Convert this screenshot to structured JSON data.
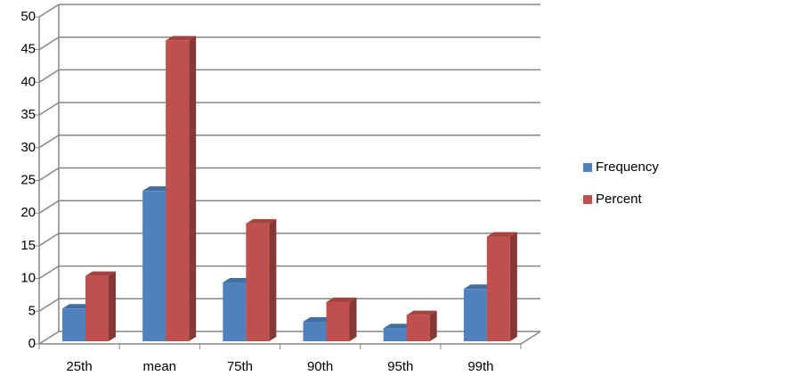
{
  "chart_data": {
    "type": "bar3d",
    "categories": [
      "25th",
      "mean",
      "75th",
      "90th",
      "95th",
      "99th"
    ],
    "series": [
      {
        "name": "Frequency",
        "color": "#4f81bd",
        "values": [
          5,
          23,
          9,
          3,
          2,
          8
        ]
      },
      {
        "name": "Percent",
        "color": "#c0504d",
        "values": [
          10,
          46,
          18,
          6,
          4,
          16
        ]
      }
    ],
    "ylim": [
      0,
      50
    ],
    "yticks": [
      0,
      5,
      10,
      15,
      20,
      25,
      30,
      35,
      40,
      45,
      50
    ],
    "grid": true,
    "legend": "right"
  }
}
